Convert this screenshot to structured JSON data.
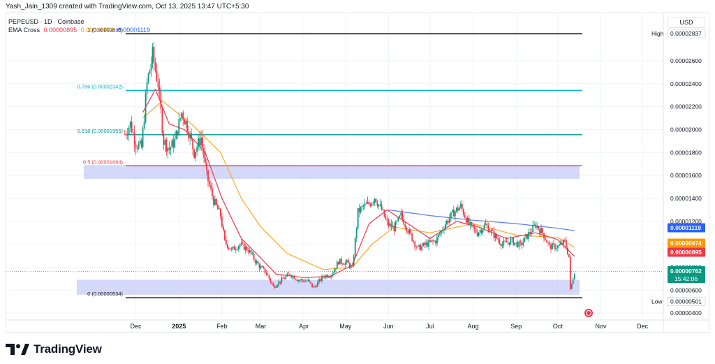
{
  "attribution": "Yash_Jain_1309 created with TradingView.com, Oct 13, 2025 13:47 UTC+5:30",
  "symbol_line": "PEPEUSD · 1D · Coinbase",
  "indicator": {
    "name": "EMA Cross",
    "values": [
      {
        "text": "0.00000895",
        "color": "#f23645"
      },
      {
        "text": "0.00000974",
        "color": "#ff9800"
      },
      {
        "text": "0.00001119",
        "color": "#2962ff"
      }
    ]
  },
  "currency_button": "USD",
  "brand": "TradingView",
  "chart_data": {
    "type": "candlestick",
    "x_ticks": [
      "Dec",
      "2025",
      "Feb",
      "Mar",
      "Apr",
      "May",
      "Jun",
      "Jul",
      "Aug",
      "Sep",
      "Oct",
      "Nov",
      "Dec"
    ],
    "y_ticks": [
      "0.00000400",
      "0.00000600",
      "0.00000800",
      "0.00001000",
      "0.00001200",
      "0.00001400",
      "0.00001600",
      "0.00001800",
      "0.00002000",
      "0.00002200",
      "0.00002400",
      "0.00002600"
    ],
    "ylim": [
      3.4e-06,
      3.02e-05
    ],
    "price_points": [
      [
        "2024-11-23",
        1.96e-05
      ],
      [
        "2024-11-27",
        2.05e-05
      ],
      [
        "2024-12-01",
        1.88e-05
      ],
      [
        "2024-12-05",
        1.84e-05
      ],
      [
        "2024-12-09",
        2.4e-05
      ],
      [
        "2024-12-13",
        2.65e-05
      ],
      [
        "2024-12-17",
        2.4e-05
      ],
      [
        "2024-12-21",
        1.9e-05
      ],
      [
        "2024-12-25",
        1.83e-05
      ],
      [
        "2024-12-29",
        1.9e-05
      ],
      [
        "2025-01-03",
        2.15e-05
      ],
      [
        "2025-01-07",
        2.03e-05
      ],
      [
        "2025-01-12",
        1.8e-05
      ],
      [
        "2025-01-17",
        1.93e-05
      ],
      [
        "2025-01-21",
        1.6e-05
      ],
      [
        "2025-01-26",
        1.38e-05
      ],
      [
        "2025-01-31",
        1.25e-05
      ],
      [
        "2025-02-03",
        1.02e-05
      ],
      [
        "2025-02-08",
        9.5e-06
      ],
      [
        "2025-02-14",
        1e-05
      ],
      [
        "2025-02-20",
        9.5e-06
      ],
      [
        "2025-02-27",
        8.2e-06
      ],
      [
        "2025-03-05",
        7.5e-06
      ],
      [
        "2025-03-10",
        6.3e-06
      ],
      [
        "2025-03-15",
        6.8e-06
      ],
      [
        "2025-03-22",
        7.4e-06
      ],
      [
        "2025-03-28",
        6.9e-06
      ],
      [
        "2025-04-04",
        6.8e-06
      ],
      [
        "2025-04-08",
        6.2e-06
      ],
      [
        "2025-04-15",
        7.2e-06
      ],
      [
        "2025-04-21",
        7.4e-06
      ],
      [
        "2025-04-26",
        8.5e-06
      ],
      [
        "2025-05-02",
        8.4e-06
      ],
      [
        "2025-05-06",
        7.9e-06
      ],
      [
        "2025-05-10",
        1.28e-05
      ],
      [
        "2025-05-14",
        1.33e-05
      ],
      [
        "2025-05-18",
        1.35e-05
      ],
      [
        "2025-05-22",
        1.41e-05
      ],
      [
        "2025-05-27",
        1.3e-05
      ],
      [
        "2025-05-31",
        1.18e-05
      ],
      [
        "2025-06-05",
        1.14e-05
      ],
      [
        "2025-06-10",
        1.25e-05
      ],
      [
        "2025-06-16",
        1.1e-05
      ],
      [
        "2025-06-22",
        9.6e-06
      ],
      [
        "2025-06-28",
        1e-05
      ],
      [
        "2025-07-05",
        1.03e-05
      ],
      [
        "2025-07-12",
        1.18e-05
      ],
      [
        "2025-07-18",
        1.28e-05
      ],
      [
        "2025-07-23",
        1.33e-05
      ],
      [
        "2025-07-29",
        1.17e-05
      ],
      [
        "2025-08-04",
        1.1e-05
      ],
      [
        "2025-08-10",
        1.17e-05
      ],
      [
        "2025-08-16",
        1.08e-05
      ],
      [
        "2025-08-22",
        1e-05
      ],
      [
        "2025-08-28",
        1.03e-05
      ],
      [
        "2025-09-04",
        9.9e-06
      ],
      [
        "2025-09-10",
        1.09e-05
      ],
      [
        "2025-09-15",
        1.17e-05
      ],
      [
        "2025-09-20",
        1.1e-05
      ],
      [
        "2025-09-25",
        9.8e-06
      ],
      [
        "2025-10-01",
        9.8e-06
      ],
      [
        "2025-10-06",
        1.02e-05
      ],
      [
        "2025-10-09",
        8.9e-06
      ],
      [
        "2025-10-10",
        6e-06
      ],
      [
        "2025-10-13",
        7.62e-06
      ]
    ],
    "ema_fast": [
      [
        "2024-12-06",
        2.15e-05
      ],
      [
        "2024-12-15",
        2.35e-05
      ],
      [
        "2024-12-25",
        2.05e-05
      ],
      [
        "2025-01-05",
        2e-05
      ],
      [
        "2025-01-20",
        1.8e-05
      ],
      [
        "2025-02-01",
        1.4e-05
      ],
      [
        "2025-02-15",
        1.05e-05
      ],
      [
        "2025-03-01",
        8.8e-06
      ],
      [
        "2025-03-12",
        7.4e-06
      ],
      [
        "2025-04-01",
        7.1e-06
      ],
      [
        "2025-04-20",
        7.2e-06
      ],
      [
        "2025-05-06",
        8.2e-06
      ],
      [
        "2025-05-18",
        1.18e-05
      ],
      [
        "2025-05-31",
        1.3e-05
      ],
      [
        "2025-06-15",
        1.18e-05
      ],
      [
        "2025-07-01",
        1.05e-05
      ],
      [
        "2025-07-20",
        1.2e-05
      ],
      [
        "2025-08-05",
        1.15e-05
      ],
      [
        "2025-08-25",
        1.05e-05
      ],
      [
        "2025-09-15",
        1.1e-05
      ],
      [
        "2025-10-01",
        1.04e-05
      ],
      [
        "2025-10-13",
        8.95e-06
      ]
    ],
    "ema_slow": [
      [
        "2024-12-06",
        2.1e-05
      ],
      [
        "2024-12-20",
        2.25e-05
      ],
      [
        "2025-01-10",
        2.05e-05
      ],
      [
        "2025-01-31",
        1.8e-05
      ],
      [
        "2025-02-15",
        1.4e-05
      ],
      [
        "2025-03-01",
        1.15e-05
      ],
      [
        "2025-03-20",
        9.2e-06
      ],
      [
        "2025-04-15",
        7.8e-06
      ],
      [
        "2025-05-06",
        8e-06
      ],
      [
        "2025-05-20",
        1e-05
      ],
      [
        "2025-06-05",
        1.15e-05
      ],
      [
        "2025-07-01",
        1.1e-05
      ],
      [
        "2025-08-01",
        1.18e-05
      ],
      [
        "2025-09-01",
        1.08e-05
      ],
      [
        "2025-10-01",
        1.06e-05
      ],
      [
        "2025-10-13",
        9.74e-06
      ]
    ],
    "ema_200": [
      [
        "2025-06-01",
        1.3e-05
      ],
      [
        "2025-07-01",
        1.25e-05
      ],
      [
        "2025-08-01",
        1.21e-05
      ],
      [
        "2025-09-01",
        1.18e-05
      ],
      [
        "2025-10-01",
        1.14e-05
      ],
      [
        "2025-10-13",
        1.119e-05
      ]
    ],
    "fib_levels": [
      {
        "label": "1 (0.00002835)",
        "value": 2.835e-05,
        "color": "#000000"
      },
      {
        "label": "0.786 (0.00002342)",
        "value": 2.342e-05,
        "color": "#00bcd4"
      },
      {
        "label": "0.618 (0.00001955)",
        "value": 1.955e-05,
        "color": "#009688"
      },
      {
        "label": "0.5 (0.00001684)",
        "value": 1.684e-05,
        "color": "#f23645"
      },
      {
        "label": "0 (0.00000534)",
        "value": 5.34e-06,
        "color": "#000000"
      }
    ],
    "zones": [
      {
        "from": 1.57e-05,
        "to": 1.69e-05
      },
      {
        "from": 5.6e-06,
        "to": 6.9e-06
      }
    ],
    "markers": [
      {
        "label": "High",
        "text": "0.00002837",
        "value": 2.837e-05
      },
      {
        "label": "Low",
        "text": "0.00000501",
        "value": 5.01e-06
      }
    ],
    "price_tags": [
      {
        "text": "0.00001119",
        "value": 1.119e-05,
        "bg": "#2962ff"
      },
      {
        "text": "0.00000974",
        "value": 9.74e-06,
        "bg": "#ff9800"
      },
      {
        "text": "0.00000895",
        "value": 8.95e-06,
        "bg": "#f23645"
      },
      {
        "text": "0.00000762",
        "value": 7.62e-06,
        "bg": "#089981"
      }
    ],
    "countdown": "15:42:06"
  }
}
